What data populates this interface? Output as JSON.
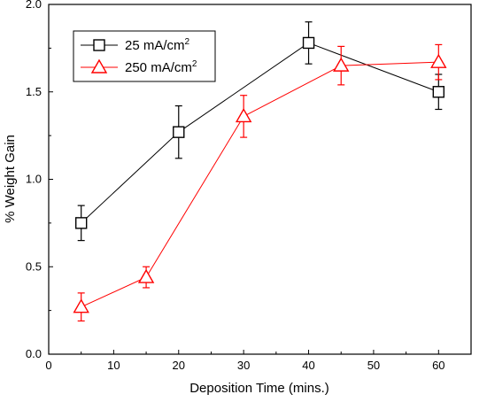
{
  "chart_data": {
    "type": "line",
    "title": "",
    "xlabel": "Deposition Time (mins.)",
    "ylabel": "% Weight Gain",
    "xlim": [
      0,
      65
    ],
    "ylim": [
      0.0,
      2.0
    ],
    "xticks": [
      0,
      10,
      20,
      30,
      40,
      50,
      60
    ],
    "yticks": [
      0.0,
      0.5,
      1.0,
      1.5,
      2.0
    ],
    "xtick_labels": [
      "0",
      "10",
      "20",
      "30",
      "40",
      "50",
      "60"
    ],
    "ytick_labels": [
      "0.0",
      "0.5",
      "1.0",
      "1.5",
      "2.0"
    ],
    "grid": false,
    "legend_position": "top-left",
    "series": [
      {
        "name": "25 mA/cm",
        "name_superscript": "2",
        "color": "#000000",
        "marker": "square",
        "x": [
          5,
          20,
          40,
          60
        ],
        "y": [
          0.75,
          1.27,
          1.78,
          1.5
        ],
        "yerr": [
          0.1,
          0.15,
          0.12,
          0.1
        ]
      },
      {
        "name": "250 mA/cm",
        "name_superscript": "2",
        "color": "#ff0000",
        "marker": "triangle",
        "x": [
          5,
          15,
          30,
          45,
          60
        ],
        "y": [
          0.27,
          0.44,
          1.36,
          1.65,
          1.67
        ],
        "yerr": [
          0.08,
          0.06,
          0.12,
          0.11,
          0.1
        ]
      }
    ]
  }
}
